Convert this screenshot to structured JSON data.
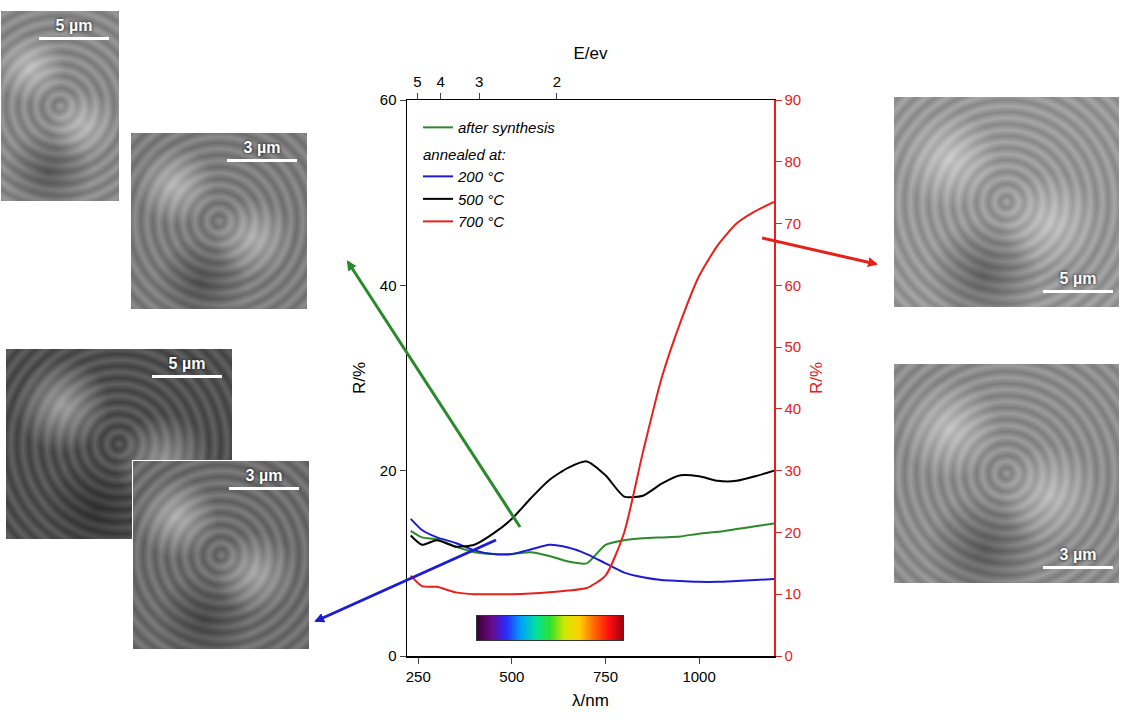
{
  "chart_data": {
    "type": "line",
    "x_label": "λ/nm",
    "x2_label": "E/ev",
    "y_label": "R/%",
    "y2_label": "R/%",
    "x": [
      230,
      260,
      300,
      350,
      400,
      450,
      500,
      550,
      600,
      650,
      700,
      750,
      800,
      850,
      900,
      950,
      1000,
      1050,
      1100,
      1150,
      1200
    ],
    "xlim": [
      220,
      1200
    ],
    "xticks": [
      250,
      500,
      750,
      1000
    ],
    "x2ticks": [
      {
        "value": 248,
        "label": "5"
      },
      {
        "value": 310,
        "label": "4"
      },
      {
        "value": 413,
        "label": "3"
      },
      {
        "value": 620,
        "label": "2"
      }
    ],
    "ylim": [
      0,
      60
    ],
    "yticks": [
      0,
      20,
      40,
      60
    ],
    "y2lim": [
      0,
      90
    ],
    "y2ticks": [
      0,
      10,
      20,
      30,
      40,
      50,
      60,
      70,
      80,
      90
    ],
    "legend": "upper left",
    "series": [
      {
        "name": "after synthesis",
        "color": "#2a8a2a",
        "axis": "y",
        "values": [
          13.5,
          12.8,
          12.6,
          11.8,
          11.2,
          11.0,
          11.0,
          11.2,
          10.8,
          10.2,
          10.0,
          12.0,
          12.5,
          12.7,
          12.8,
          12.9,
          13.2,
          13.4,
          13.7,
          14.0,
          14.3
        ]
      },
      {
        "name": "200 °C",
        "group": "annealed at:",
        "color": "#1c1cd4",
        "axis": "y",
        "values": [
          14.8,
          13.6,
          12.8,
          12.2,
          11.4,
          11.0,
          11.0,
          11.5,
          12.0,
          11.7,
          11.0,
          10.0,
          9.0,
          8.5,
          8.2,
          8.1,
          8.0,
          8.0,
          8.1,
          8.2,
          8.3
        ]
      },
      {
        "name": "500 °C",
        "group": "annealed at:",
        "color": "#000000",
        "axis": "y",
        "values": [
          13.0,
          12.0,
          12.5,
          11.8,
          12.0,
          13.2,
          14.8,
          17.0,
          19.0,
          20.3,
          21.0,
          19.5,
          17.2,
          17.3,
          18.6,
          19.5,
          19.4,
          18.9,
          18.9,
          19.4,
          20.0
        ]
      },
      {
        "name": "700 °C",
        "group": "annealed at:",
        "color": "#e8201a",
        "axis": "y2",
        "values": [
          13.0,
          11.3,
          11.2,
          10.3,
          10.0,
          10.0,
          10.0,
          10.1,
          10.3,
          10.6,
          11.0,
          13.0,
          20.0,
          33.0,
          45.0,
          54.0,
          61.5,
          66.5,
          70.0,
          72.0,
          73.5
        ]
      }
    ]
  },
  "sem_images": [
    {
      "scale_bar": "5 µm"
    },
    {
      "scale_bar": "3 µm"
    },
    {
      "scale_bar": "5 µm"
    },
    {
      "scale_bar": "3 µm"
    },
    {
      "scale_bar": "5 µm"
    },
    {
      "scale_bar": "3 µm"
    }
  ]
}
